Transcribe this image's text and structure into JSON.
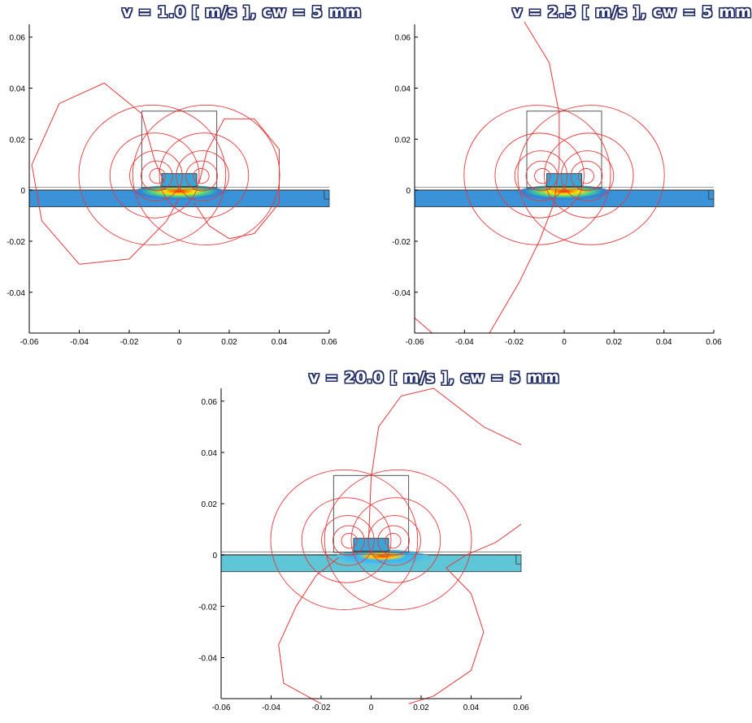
{
  "colors": {
    "field_line": "#e83838",
    "plate_low": "#3a93d8",
    "plate_low_v20": "#5ec6d6",
    "magnet": "#3aa6d8",
    "outline": "#555555",
    "title_outline": "#1f2a66"
  },
  "chart_data": [
    {
      "type": "contour",
      "title": "v = 1.0  [ m/s ],  cw = 5 mm",
      "velocity_m_s": 1.0,
      "coil_width_mm": 5,
      "xlim": [
        -0.06,
        0.06
      ],
      "ylim": [
        -0.056,
        0.065
      ],
      "xticks": [
        -0.06,
        -0.04,
        -0.02,
        0,
        0.02,
        0.04,
        0.06
      ],
      "xtick_labels": [
        "-0.06",
        "-0.04",
        "-0.02",
        "0",
        "0.02",
        "0.04",
        "0.06"
      ],
      "yticks": [
        0.06,
        0.04,
        0.02,
        0,
        -0.02,
        -0.04
      ],
      "ytick_labels": [
        "0.06",
        "0.04",
        "0.02",
        "0",
        "-0.02",
        "-0.04"
      ],
      "grid": false,
      "field_lines": [
        [
          [
            -0.006,
            0.003
          ],
          [
            -0.01,
            0.012
          ],
          [
            -0.015,
            0.03
          ],
          [
            -0.03,
            0.042
          ],
          [
            -0.048,
            0.034
          ],
          [
            -0.059,
            0.01
          ],
          [
            -0.055,
            -0.012
          ],
          [
            -0.04,
            -0.029
          ],
          [
            -0.02,
            -0.027
          ],
          [
            -0.005,
            -0.012
          ],
          [
            0.0,
            -0.003
          ]
        ],
        [
          [
            0.008,
            0.003
          ],
          [
            0.011,
            0.015
          ],
          [
            0.018,
            0.028
          ],
          [
            0.03,
            0.028
          ],
          [
            0.04,
            0.016
          ],
          [
            0.04,
            -0.005
          ],
          [
            0.03,
            -0.017
          ],
          [
            0.02,
            -0.019
          ],
          [
            0.012,
            -0.014
          ],
          [
            0.006,
            -0.005
          ]
        ]
      ]
    },
    {
      "type": "contour",
      "title": "v = 2.5  [ m/s ],  cw = 5 mm",
      "velocity_m_s": 2.5,
      "coil_width_mm": 5,
      "xlim": [
        -0.06,
        0.06
      ],
      "ylim": [
        -0.056,
        0.065
      ],
      "xticks": [
        -0.06,
        -0.04,
        -0.02,
        0,
        0.02,
        0.04,
        0.06
      ],
      "xtick_labels": [
        "-0.06",
        "-0.04",
        "-0.02",
        "0",
        "0.02",
        "0.04",
        "0.06"
      ],
      "yticks": [
        0.06,
        0.04,
        0.02,
        0,
        -0.02,
        -0.04
      ],
      "ytick_labels": [
        "0.06",
        "0.04",
        "0.02",
        "0",
        "-0.02",
        "-0.04"
      ],
      "grid": false,
      "field_lines": [
        [
          [
            -0.016,
            0.066
          ],
          [
            -0.006,
            0.05
          ],
          [
            -0.002,
            0.03
          ],
          [
            -0.002,
            0.01
          ],
          [
            -0.004,
            -0.005
          ],
          [
            -0.01,
            -0.02
          ],
          [
            -0.018,
            -0.036
          ],
          [
            -0.03,
            -0.056
          ]
        ],
        [
          [
            -0.06,
            0.062
          ],
          [
            -0.06,
            0.064
          ]
        ],
        [
          [
            -0.06,
            -0.05
          ],
          [
            -0.053,
            -0.056
          ]
        ]
      ]
    },
    {
      "type": "contour",
      "title": "v = 20.0  [ m/s ],  cw = 5 mm",
      "velocity_m_s": 20.0,
      "coil_width_mm": 5,
      "xlim": [
        -0.06,
        0.06
      ],
      "ylim": [
        -0.056,
        0.065
      ],
      "xticks": [
        -0.06,
        -0.04,
        -0.02,
        0,
        0.02,
        0.04,
        0.06
      ],
      "xtick_labels": [
        "-0.06",
        "-0.04",
        "-0.02",
        "0",
        "0.02",
        "0.04",
        "0.06"
      ],
      "yticks": [
        0.06,
        0.04,
        0.02,
        0,
        -0.02,
        -0.04
      ],
      "ytick_labels": [
        "0.06",
        "0.04",
        "0.02",
        "0",
        "-0.02",
        "-0.04"
      ],
      "grid": false,
      "field_lines": [
        [
          [
            -0.001,
            0.006
          ],
          [
            0.0,
            0.03
          ],
          [
            0.003,
            0.05
          ],
          [
            0.012,
            0.062
          ],
          [
            0.025,
            0.065
          ],
          [
            0.045,
            0.05
          ],
          [
            0.06,
            0.043
          ]
        ],
        [
          [
            0.06,
            0.012
          ],
          [
            0.05,
            0.005
          ],
          [
            0.038,
            0.0
          ],
          [
            0.03,
            -0.005
          ],
          [
            0.04,
            -0.015
          ],
          [
            0.045,
            -0.03
          ],
          [
            0.04,
            -0.045
          ],
          [
            0.025,
            -0.055
          ],
          [
            0.015,
            -0.058
          ]
        ],
        [
          [
            -0.02,
            -0.058
          ],
          [
            -0.035,
            -0.05
          ],
          [
            -0.037,
            -0.035
          ],
          [
            -0.03,
            -0.02
          ],
          [
            -0.022,
            -0.008
          ],
          [
            -0.013,
            -0.001
          ]
        ]
      ]
    }
  ]
}
